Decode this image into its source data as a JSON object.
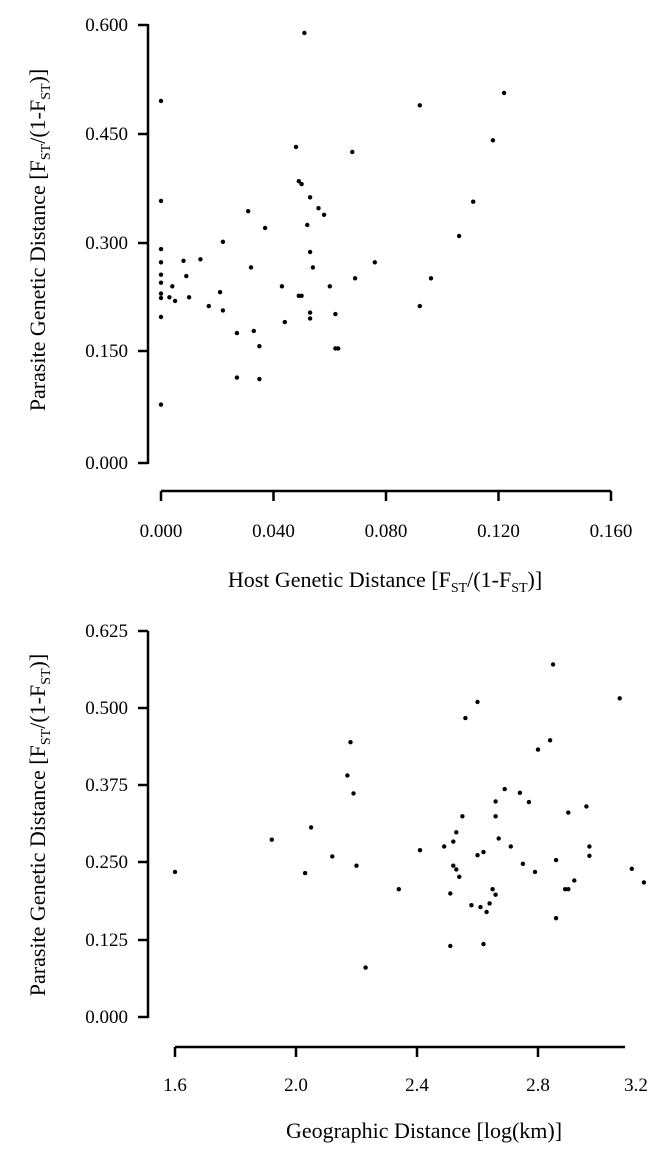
{
  "chart_data": [
    {
      "type": "scatter",
      "title": "",
      "xlabel": "Host Genetic Distance [FST/(1-FST)]",
      "ylabel": "Parasite Genetic Distance [FST/(1-FST)]",
      "x_ticks": [
        "0.000",
        "0.040",
        "0.080",
        "0.120",
        "0.160"
      ],
      "y_ticks": [
        "0.000",
        "0.150",
        "0.300",
        "0.450",
        "0.600"
      ],
      "xlim": [
        0,
        0.16
      ],
      "ylim": [
        0,
        0.6
      ],
      "grid": false,
      "points": [
        [
          0.0,
          0.496
        ],
        [
          0.0,
          0.359
        ],
        [
          0.0,
          0.293
        ],
        [
          0.0,
          0.275
        ],
        [
          0.0,
          0.258
        ],
        [
          0.0,
          0.247
        ],
        [
          0.0,
          0.232
        ],
        [
          0.0,
          0.226
        ],
        [
          0.0,
          0.2
        ],
        [
          0.0,
          0.08
        ],
        [
          0.003,
          0.227
        ],
        [
          0.004,
          0.242
        ],
        [
          0.005,
          0.222
        ],
        [
          0.008,
          0.277
        ],
        [
          0.009,
          0.256
        ],
        [
          0.01,
          0.227
        ],
        [
          0.014,
          0.279
        ],
        [
          0.017,
          0.215
        ],
        [
          0.021,
          0.234
        ],
        [
          0.022,
          0.303
        ],
        [
          0.022,
          0.209
        ],
        [
          0.027,
          0.178
        ],
        [
          0.027,
          0.117
        ],
        [
          0.031,
          0.345
        ],
        [
          0.032,
          0.268
        ],
        [
          0.033,
          0.181
        ],
        [
          0.035,
          0.16
        ],
        [
          0.035,
          0.115
        ],
        [
          0.037,
          0.322
        ],
        [
          0.043,
          0.242
        ],
        [
          0.044,
          0.193
        ],
        [
          0.048,
          0.433
        ],
        [
          0.049,
          0.386
        ],
        [
          0.05,
          0.382
        ],
        [
          0.049,
          0.229
        ],
        [
          0.05,
          0.229
        ],
        [
          0.051,
          0.589
        ],
        [
          0.052,
          0.326
        ],
        [
          0.053,
          0.364
        ],
        [
          0.053,
          0.289
        ],
        [
          0.053,
          0.206
        ],
        [
          0.054,
          0.268
        ],
        [
          0.053,
          0.198
        ],
        [
          0.056,
          0.349
        ],
        [
          0.058,
          0.34
        ],
        [
          0.06,
          0.242
        ],
        [
          0.062,
          0.204
        ],
        [
          0.062,
          0.157
        ],
        [
          0.063,
          0.157
        ],
        [
          0.068,
          0.426
        ],
        [
          0.069,
          0.253
        ],
        [
          0.076,
          0.275
        ],
        [
          0.092,
          0.49
        ],
        [
          0.092,
          0.215
        ],
        [
          0.096,
          0.253
        ],
        [
          0.106,
          0.311
        ],
        [
          0.111,
          0.358
        ],
        [
          0.118,
          0.442
        ],
        [
          0.122,
          0.507
        ]
      ]
    },
    {
      "type": "scatter",
      "title": "",
      "xlabel": "Geographic Distance [log(km)]",
      "ylabel": "Parasite Genetic Distance [FST/(1-FST)]",
      "x_ticks": [
        "1.6",
        "2.0",
        "2.4",
        "2.8",
        "3.2"
      ],
      "y_ticks": [
        "0.000",
        "0.125",
        "0.250",
        "0.375",
        "0.500",
        "0.625"
      ],
      "xlim": [
        1.6,
        3.2
      ],
      "ylim": [
        0,
        0.625
      ],
      "grid": false,
      "points": [
        [
          1.6,
          0.235
        ],
        [
          1.92,
          0.287
        ],
        [
          2.03,
          0.233
        ],
        [
          2.05,
          0.307
        ],
        [
          2.12,
          0.26
        ],
        [
          2.17,
          0.391
        ],
        [
          2.18,
          0.445
        ],
        [
          2.19,
          0.362
        ],
        [
          2.2,
          0.245
        ],
        [
          2.23,
          0.08
        ],
        [
          2.34,
          0.207
        ],
        [
          2.41,
          0.27
        ],
        [
          2.49,
          0.276
        ],
        [
          2.51,
          0.2
        ],
        [
          2.51,
          0.115
        ],
        [
          2.52,
          0.284
        ],
        [
          2.52,
          0.245
        ],
        [
          2.53,
          0.239
        ],
        [
          2.53,
          0.299
        ],
        [
          2.54,
          0.227
        ],
        [
          2.55,
          0.325
        ],
        [
          2.56,
          0.484
        ],
        [
          2.58,
          0.181
        ],
        [
          2.6,
          0.51
        ],
        [
          2.6,
          0.262
        ],
        [
          2.61,
          0.178
        ],
        [
          2.62,
          0.267
        ],
        [
          2.62,
          0.118
        ],
        [
          2.63,
          0.17
        ],
        [
          2.64,
          0.184
        ],
        [
          2.65,
          0.207
        ],
        [
          2.66,
          0.198
        ],
        [
          2.66,
          0.325
        ],
        [
          2.66,
          0.349
        ],
        [
          2.67,
          0.289
        ],
        [
          2.69,
          0.369
        ],
        [
          2.71,
          0.276
        ],
        [
          2.74,
          0.363
        ],
        [
          2.75,
          0.248
        ],
        [
          2.77,
          0.348
        ],
        [
          2.79,
          0.235
        ],
        [
          2.8,
          0.433
        ],
        [
          2.84,
          0.448
        ],
        [
          2.85,
          0.571
        ],
        [
          2.86,
          0.16
        ],
        [
          2.86,
          0.254
        ],
        [
          2.89,
          0.207
        ],
        [
          2.9,
          0.207
        ],
        [
          2.9,
          0.331
        ],
        [
          2.92,
          0.221
        ],
        [
          2.96,
          0.341
        ],
        [
          2.97,
          0.276
        ],
        [
          2.97,
          0.261
        ],
        [
          3.07,
          0.516
        ],
        [
          3.11,
          0.24
        ],
        [
          3.15,
          0.218
        ]
      ]
    }
  ]
}
